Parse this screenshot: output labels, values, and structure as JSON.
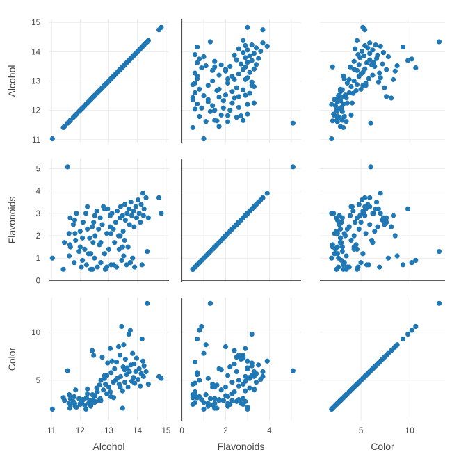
{
  "chart_data": {
    "type": "scatter",
    "variables": [
      "Alcohol",
      "Flavonoids",
      "Color"
    ],
    "marker_color": "#1f77b4",
    "background": "#ffffff",
    "grid": true,
    "axes": {
      "Alcohol": {
        "range": [
          10.9,
          15.1
        ],
        "ticks": [
          11,
          12,
          13,
          14,
          15
        ],
        "tick_labels": [
          "11",
          "12",
          "13",
          "14",
          "15"
        ]
      },
      "Flavonoids": {
        "range": [
          -0.05,
          5.45
        ],
        "ticks": [
          0,
          1,
          2,
          3,
          4,
          5
        ],
        "tick_labels": [
          "0",
          "1",
          "2",
          "3",
          "4",
          "5"
        ]
      },
      "Color": {
        "range": [
          0.8,
          13.6
        ],
        "ticks": [
          5,
          10
        ],
        "tick_labels": [
          "5",
          "10"
        ]
      }
    },
    "x_axis_ticks_shown": {
      "Alcohol": [
        "11",
        "12",
        "13",
        "14",
        "15"
      ],
      "Flavonoids": [
        "0",
        "2",
        "4"
      ],
      "Color": [
        "5",
        "10"
      ]
    },
    "y_axis_ticks_shown": {
      "Alcohol": [
        "11",
        "12",
        "13",
        "14",
        "15"
      ],
      "Flavonoids": [
        "0",
        "1",
        "2",
        "3",
        "4",
        "5"
      ],
      "Color": [
        "5",
        "10"
      ]
    },
    "points": [
      [
        11.03,
        1.0,
        2.0
      ],
      [
        11.41,
        0.5,
        3.2
      ],
      [
        11.45,
        1.7,
        2.9
      ],
      [
        11.56,
        5.08,
        6.0
      ],
      [
        11.61,
        2.1,
        2.6
      ],
      [
        11.62,
        1.1,
        3.5
      ],
      [
        11.64,
        1.6,
        2.1
      ],
      [
        11.65,
        2.8,
        2.5
      ],
      [
        11.66,
        1.5,
        3.1
      ],
      [
        11.76,
        2.5,
        2.8
      ],
      [
        11.79,
        0.8,
        3.3
      ],
      [
        11.81,
        2.7,
        2.6
      ],
      [
        11.82,
        2.1,
        2.3
      ],
      [
        11.84,
        1.8,
        4.0
      ],
      [
        11.87,
        3.0,
        2.2
      ],
      [
        11.96,
        1.3,
        3.1
      ],
      [
        12.0,
        2.2,
        2.5
      ],
      [
        12.04,
        0.6,
        2.7
      ],
      [
        12.08,
        1.9,
        2.9
      ],
      [
        12.1,
        2.6,
        3.0
      ],
      [
        12.16,
        1.4,
        2.4
      ],
      [
        12.2,
        3.0,
        2.0
      ],
      [
        12.22,
        0.7,
        3.2
      ],
      [
        12.25,
        2.3,
        3.6
      ],
      [
        12.29,
        1.2,
        2.6
      ],
      [
        12.33,
        1.9,
        2.9
      ],
      [
        12.37,
        0.5,
        2.5
      ],
      [
        12.42,
        2.4,
        8.1
      ],
      [
        12.45,
        1.7,
        3.0
      ],
      [
        12.47,
        2.6,
        7.6
      ],
      [
        12.5,
        1.0,
        2.7
      ],
      [
        12.52,
        2.0,
        3.4
      ],
      [
        12.58,
        3.1,
        4.2
      ],
      [
        12.6,
        0.6,
        3.8
      ],
      [
        12.64,
        2.3,
        2.9
      ],
      [
        12.67,
        1.6,
        4.5
      ],
      [
        12.7,
        2.8,
        3.1
      ],
      [
        12.72,
        0.8,
        5.0
      ],
      [
        12.77,
        2.5,
        7.4
      ],
      [
        12.81,
        3.3,
        4.0
      ],
      [
        12.85,
        1.2,
        5.2
      ],
      [
        12.88,
        0.5,
        4.6
      ],
      [
        12.93,
        2.1,
        5.5
      ],
      [
        12.96,
        3.2,
        6.8
      ],
      [
        13.0,
        1.4,
        4.3
      ],
      [
        13.05,
        2.9,
        8.3
      ],
      [
        13.08,
        0.7,
        5.8
      ],
      [
        13.11,
        3.0,
        7.0
      ],
      [
        13.16,
        2.3,
        4.8
      ],
      [
        13.2,
        1.7,
        6.2
      ],
      [
        13.24,
        2.6,
        5.0
      ],
      [
        13.27,
        0.6,
        6.9
      ],
      [
        13.29,
        3.1,
        5.2
      ],
      [
        13.34,
        2.0,
        8.5
      ],
      [
        13.36,
        1.4,
        4.6
      ],
      [
        13.39,
        2.8,
        7.6
      ],
      [
        13.41,
        3.3,
        5.4
      ],
      [
        13.45,
        0.9,
        10.6
      ],
      [
        13.48,
        2.9,
        3.9
      ],
      [
        13.5,
        2.2,
        6.4
      ],
      [
        13.52,
        1.1,
        8.7
      ],
      [
        13.56,
        3.4,
        4.8
      ],
      [
        13.58,
        2.7,
        7.2
      ],
      [
        13.62,
        0.7,
        5.6
      ],
      [
        13.64,
        3.0,
        6.3
      ],
      [
        13.67,
        1.5,
        4.3
      ],
      [
        13.7,
        3.2,
        9.8
      ],
      [
        13.72,
        2.5,
        5.9
      ],
      [
        13.75,
        0.8,
        10.2
      ],
      [
        13.77,
        3.5,
        6.6
      ],
      [
        13.8,
        2.9,
        4.9
      ],
      [
        13.83,
        1.0,
        7.8
      ],
      [
        13.86,
        3.1,
        5.3
      ],
      [
        13.88,
        2.4,
        6.7
      ],
      [
        13.9,
        0.6,
        4.7
      ],
      [
        13.94,
        3.3,
        5.9
      ],
      [
        13.97,
        2.8,
        7.3
      ],
      [
        14.02,
        3.6,
        5.1
      ],
      [
        14.06,
        3.0,
        6.2
      ],
      [
        14.1,
        2.6,
        4.4
      ],
      [
        14.13,
        3.4,
        5.7
      ],
      [
        14.16,
        0.7,
        9.3
      ],
      [
        14.19,
        3.9,
        7.0
      ],
      [
        14.21,
        2.9,
        5.4
      ],
      [
        14.23,
        3.2,
        6.5
      ],
      [
        14.3,
        3.7,
        5.9
      ],
      [
        14.34,
        1.3,
        13.0
      ],
      [
        14.38,
        2.8,
        4.6
      ],
      [
        14.75,
        3.7,
        5.4
      ],
      [
        14.83,
        3.0,
        5.2
      ],
      [
        12.0,
        1.5,
        2.6
      ],
      [
        12.08,
        0.9,
        3.0
      ],
      [
        12.37,
        1.2,
        2.3
      ],
      [
        12.43,
        0.5,
        3.5
      ],
      [
        12.51,
        2.9,
        2.8
      ],
      [
        12.72,
        1.7,
        2.9
      ],
      [
        12.93,
        0.6,
        3.6
      ],
      [
        13.07,
        2.1,
        3.3
      ],
      [
        13.17,
        0.7,
        3.2
      ],
      [
        13.48,
        1.5,
        2.1
      ],
      [
        12.25,
        3.3,
        4.1
      ],
      [
        12.85,
        3.2,
        5.5
      ],
      [
        13.05,
        2.4,
        3.8
      ],
      [
        13.4,
        2.0,
        4.3
      ],
      [
        13.55,
        1.8,
        6.1
      ]
    ]
  }
}
